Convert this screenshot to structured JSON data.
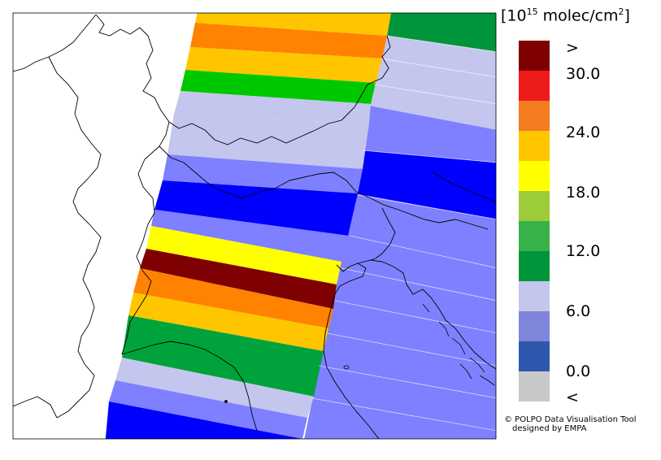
{
  "legend": {
    "title_prefix": "[10",
    "title_exponent": "15",
    "title_units": " molec/cm",
    "title_units_exponent": "2",
    "title_suffix": "]",
    "levels": [
      {
        "color": "#7f0000"
      },
      {
        "color": "#ee1b1b"
      },
      {
        "color": "#f47c20"
      },
      {
        "color": "#ffc600"
      },
      {
        "color": "#ffff00"
      },
      {
        "color": "#9dcc3a"
      },
      {
        "color": "#37b14a"
      },
      {
        "color": "#00953b"
      },
      {
        "color": "#c4c6ee"
      },
      {
        "color": "#7f86d9"
      },
      {
        "color": "#2e58ae"
      },
      {
        "color": "#c8c8c8"
      }
    ],
    "labels": [
      ">",
      "30.0",
      "24.0",
      "18.0",
      "12.0",
      "6.0",
      "0.0",
      "<"
    ]
  },
  "credit": {
    "line1": "© POLPO Data Visualisation Tool",
    "line2": "designed by EMPA"
  },
  "palette": {
    "dark_red": "#7f0000",
    "orange": "#ff8200",
    "light_orange": "#ffc600",
    "yellow": "#ffff00",
    "green": "#00a33b",
    "dark_green": "#00953b",
    "lavender": "#c4c6ee",
    "periwinkle": "#7f80ff",
    "blue": "#0000ff",
    "land_bg": "#ffffff",
    "boundary": "#000000"
  }
}
